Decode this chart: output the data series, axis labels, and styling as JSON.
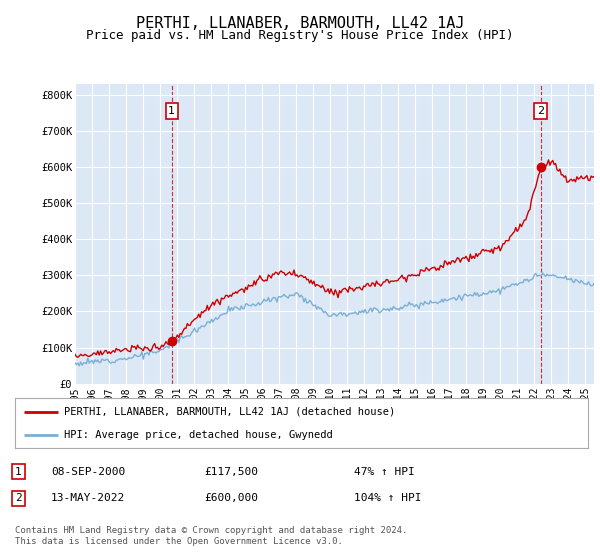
{
  "title": "PERTHI, LLANABER, BARMOUTH, LL42 1AJ",
  "subtitle": "Price paid vs. HM Land Registry's House Price Index (HPI)",
  "title_fontsize": 11,
  "subtitle_fontsize": 9,
  "ylabel_ticks": [
    "£0",
    "£100K",
    "£200K",
    "£300K",
    "£400K",
    "£500K",
    "£600K",
    "£700K",
    "£800K"
  ],
  "ytick_vals": [
    0,
    100000,
    200000,
    300000,
    400000,
    500000,
    600000,
    700000,
    800000
  ],
  "ylim": [
    0,
    830000
  ],
  "xlim_start": 1995.0,
  "xlim_end": 2025.5,
  "background_color": "#ffffff",
  "plot_bg_color": "#dce8f5",
  "grid_color": "#ffffff",
  "red_color": "#cc0000",
  "blue_color": "#7bafd4",
  "marker1_year": 2000.69,
  "marker1_price": 117500,
  "marker1_label": "1",
  "marker2_year": 2022.37,
  "marker2_price": 600000,
  "marker2_label": "2",
  "vline1_year": 2000.69,
  "vline2_year": 2022.37,
  "legend_red_label": "PERTHI, LLANABER, BARMOUTH, LL42 1AJ (detached house)",
  "legend_blue_label": "HPI: Average price, detached house, Gwynedd",
  "annot1_date": "08-SEP-2000",
  "annot1_price": "£117,500",
  "annot1_hpi": "47% ↑ HPI",
  "annot2_date": "13-MAY-2022",
  "annot2_price": "£600,000",
  "annot2_hpi": "104% ↑ HPI",
  "footer": "Contains HM Land Registry data © Crown copyright and database right 2024.\nThis data is licensed under the Open Government Licence v3.0.",
  "xtick_years": [
    1995,
    1996,
    1997,
    1998,
    1999,
    2000,
    2001,
    2002,
    2003,
    2004,
    2005,
    2006,
    2007,
    2008,
    2009,
    2010,
    2011,
    2012,
    2013,
    2014,
    2015,
    2016,
    2017,
    2018,
    2019,
    2020,
    2021,
    2022,
    2023,
    2024,
    2025
  ]
}
